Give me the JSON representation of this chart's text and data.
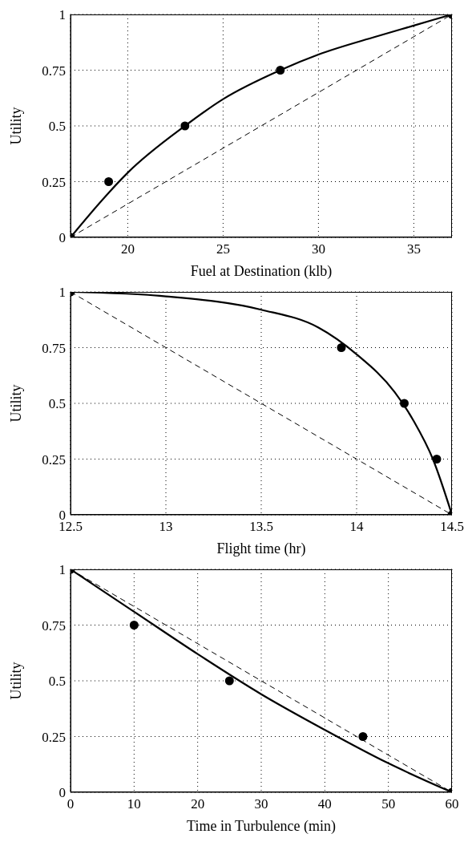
{
  "chart_data": [
    {
      "type": "line",
      "xlabel": "Fuel at Destination  (klb)",
      "ylabel": "Utility",
      "xlim": [
        17,
        37
      ],
      "xticks": [
        20,
        25,
        30,
        35
      ],
      "ylim": [
        0,
        1
      ],
      "yticks": [
        0,
        0.25,
        0.5,
        0.75,
        1
      ],
      "grid": true,
      "series": [
        {
          "color": "#000000",
          "line_style": "solid",
          "x": [
            17,
            19,
            20,
            23,
            25,
            28,
            30,
            33,
            35,
            37
          ],
          "values": [
            0,
            0.2,
            0.29,
            0.5,
            0.62,
            0.75,
            0.82,
            0.9,
            0.95,
            1
          ]
        },
        {
          "color": "#000000",
          "line_style": "dashed",
          "x": [
            17,
            37
          ],
          "values": [
            0,
            1
          ]
        },
        {
          "type": "scatter",
          "color": "#000000",
          "marker": "circle",
          "x": [
            17,
            19,
            23,
            28,
            37
          ],
          "values": [
            0,
            0.25,
            0.5,
            0.75,
            1
          ]
        }
      ]
    },
    {
      "type": "line",
      "xlabel": "Flight time  (hr)",
      "ylabel": "Utility",
      "xlim": [
        12.5,
        14.5
      ],
      "xticks": [
        12.5,
        13,
        13.5,
        14,
        14.5
      ],
      "ylim": [
        0,
        1
      ],
      "yticks": [
        0,
        0.25,
        0.5,
        0.75,
        1
      ],
      "grid": true,
      "series": [
        {
          "color": "#000000",
          "line_style": "solid",
          "x": [
            12.5,
            13,
            13.5,
            13.8,
            14,
            14.2,
            14.3,
            14.4,
            14.5
          ],
          "values": [
            1,
            0.98,
            0.92,
            0.84,
            0.72,
            0.55,
            0.42,
            0.25,
            0
          ]
        },
        {
          "color": "#000000",
          "line_style": "dashed",
          "x": [
            12.5,
            14.5
          ],
          "values": [
            1,
            0
          ]
        },
        {
          "type": "scatter",
          "color": "#000000",
          "marker": "circle",
          "x": [
            12.5,
            13.92,
            14.25,
            14.42,
            14.5
          ],
          "values": [
            1,
            0.75,
            0.5,
            0.25,
            0
          ]
        }
      ]
    },
    {
      "type": "line",
      "xlabel": "Time in Turbulence  (min)",
      "ylabel": "Utility",
      "xlim": [
        0,
        60
      ],
      "xticks": [
        0,
        10,
        20,
        30,
        40,
        50,
        60
      ],
      "ylim": [
        0,
        1
      ],
      "yticks": [
        0,
        0.25,
        0.5,
        0.75,
        1
      ],
      "grid": true,
      "series": [
        {
          "color": "#000000",
          "line_style": "solid",
          "x": [
            0,
            10,
            20,
            30,
            40,
            50,
            60
          ],
          "values": [
            1,
            0.81,
            0.62,
            0.44,
            0.28,
            0.13,
            0
          ]
        },
        {
          "color": "#000000",
          "line_style": "dashed",
          "x": [
            0,
            60
          ],
          "values": [
            1,
            0
          ]
        },
        {
          "type": "scatter",
          "color": "#000000",
          "marker": "circle",
          "x": [
            0,
            10,
            25,
            46,
            60
          ],
          "values": [
            1,
            0.75,
            0.5,
            0.25,
            0
          ]
        }
      ]
    }
  ]
}
